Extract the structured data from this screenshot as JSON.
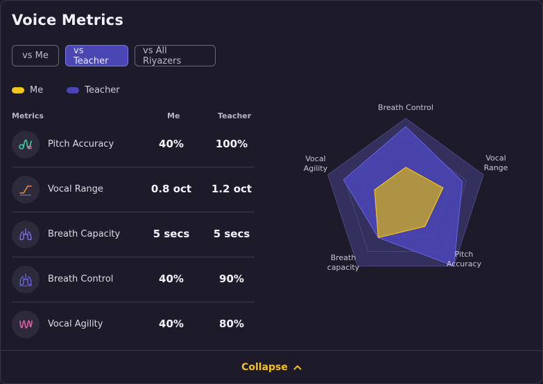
{
  "title": "Voice Metrics",
  "tabs": [
    {
      "label": "vs Me",
      "active": false
    },
    {
      "label": "vs Teacher",
      "active": true
    },
    {
      "label": "vs All Riyazers",
      "active": false
    }
  ],
  "legend": [
    {
      "label": "Me",
      "color": "#f5c518"
    },
    {
      "label": "Teacher",
      "color": "#4b46b8"
    }
  ],
  "table": {
    "headers": {
      "metric": "Metrics",
      "me": "Me",
      "teacher": "Teacher"
    },
    "rows": [
      {
        "icon": "pitch-wave-icon",
        "name": "Pitch Accuracy",
        "me": "40%",
        "teacher": "100%"
      },
      {
        "icon": "vocal-range-icon",
        "name": "Vocal Range",
        "me": "0.8 oct",
        "teacher": "1.2 oct"
      },
      {
        "icon": "lungs-icon",
        "name": "Breath Capacity",
        "me": "5 secs",
        "teacher": "5 secs"
      },
      {
        "icon": "lungs-outline-icon",
        "name": "Breath Control",
        "me": "40%",
        "teacher": "90%"
      },
      {
        "icon": "agility-wave-icon",
        "name": "Vocal Agility",
        "me": "40%",
        "teacher": "80%"
      }
    ]
  },
  "chart_data": {
    "type": "radar",
    "axes": [
      "Breath Control",
      "Vocal Range",
      "Pitch Accuracy",
      "Breath capacity",
      "Vocal Agility"
    ],
    "axis_labels": [
      [
        "Breath Control"
      ],
      [
        "Vocal",
        "Range"
      ],
      [
        "Pitch",
        "Accuracy"
      ],
      [
        "Breath",
        "capacity"
      ],
      [
        "Vocal",
        "Agility"
      ]
    ],
    "series": [
      {
        "name": "Teacher",
        "color": "#4b46b8",
        "values": [
          0.9,
          0.73,
          1.0,
          0.57,
          0.8
        ]
      },
      {
        "name": "Me",
        "color": "#f5c518",
        "values": [
          0.4,
          0.48,
          0.4,
          0.57,
          0.4
        ]
      }
    ],
    "max": 1.0
  },
  "footer": {
    "collapse_label": "Collapse"
  }
}
